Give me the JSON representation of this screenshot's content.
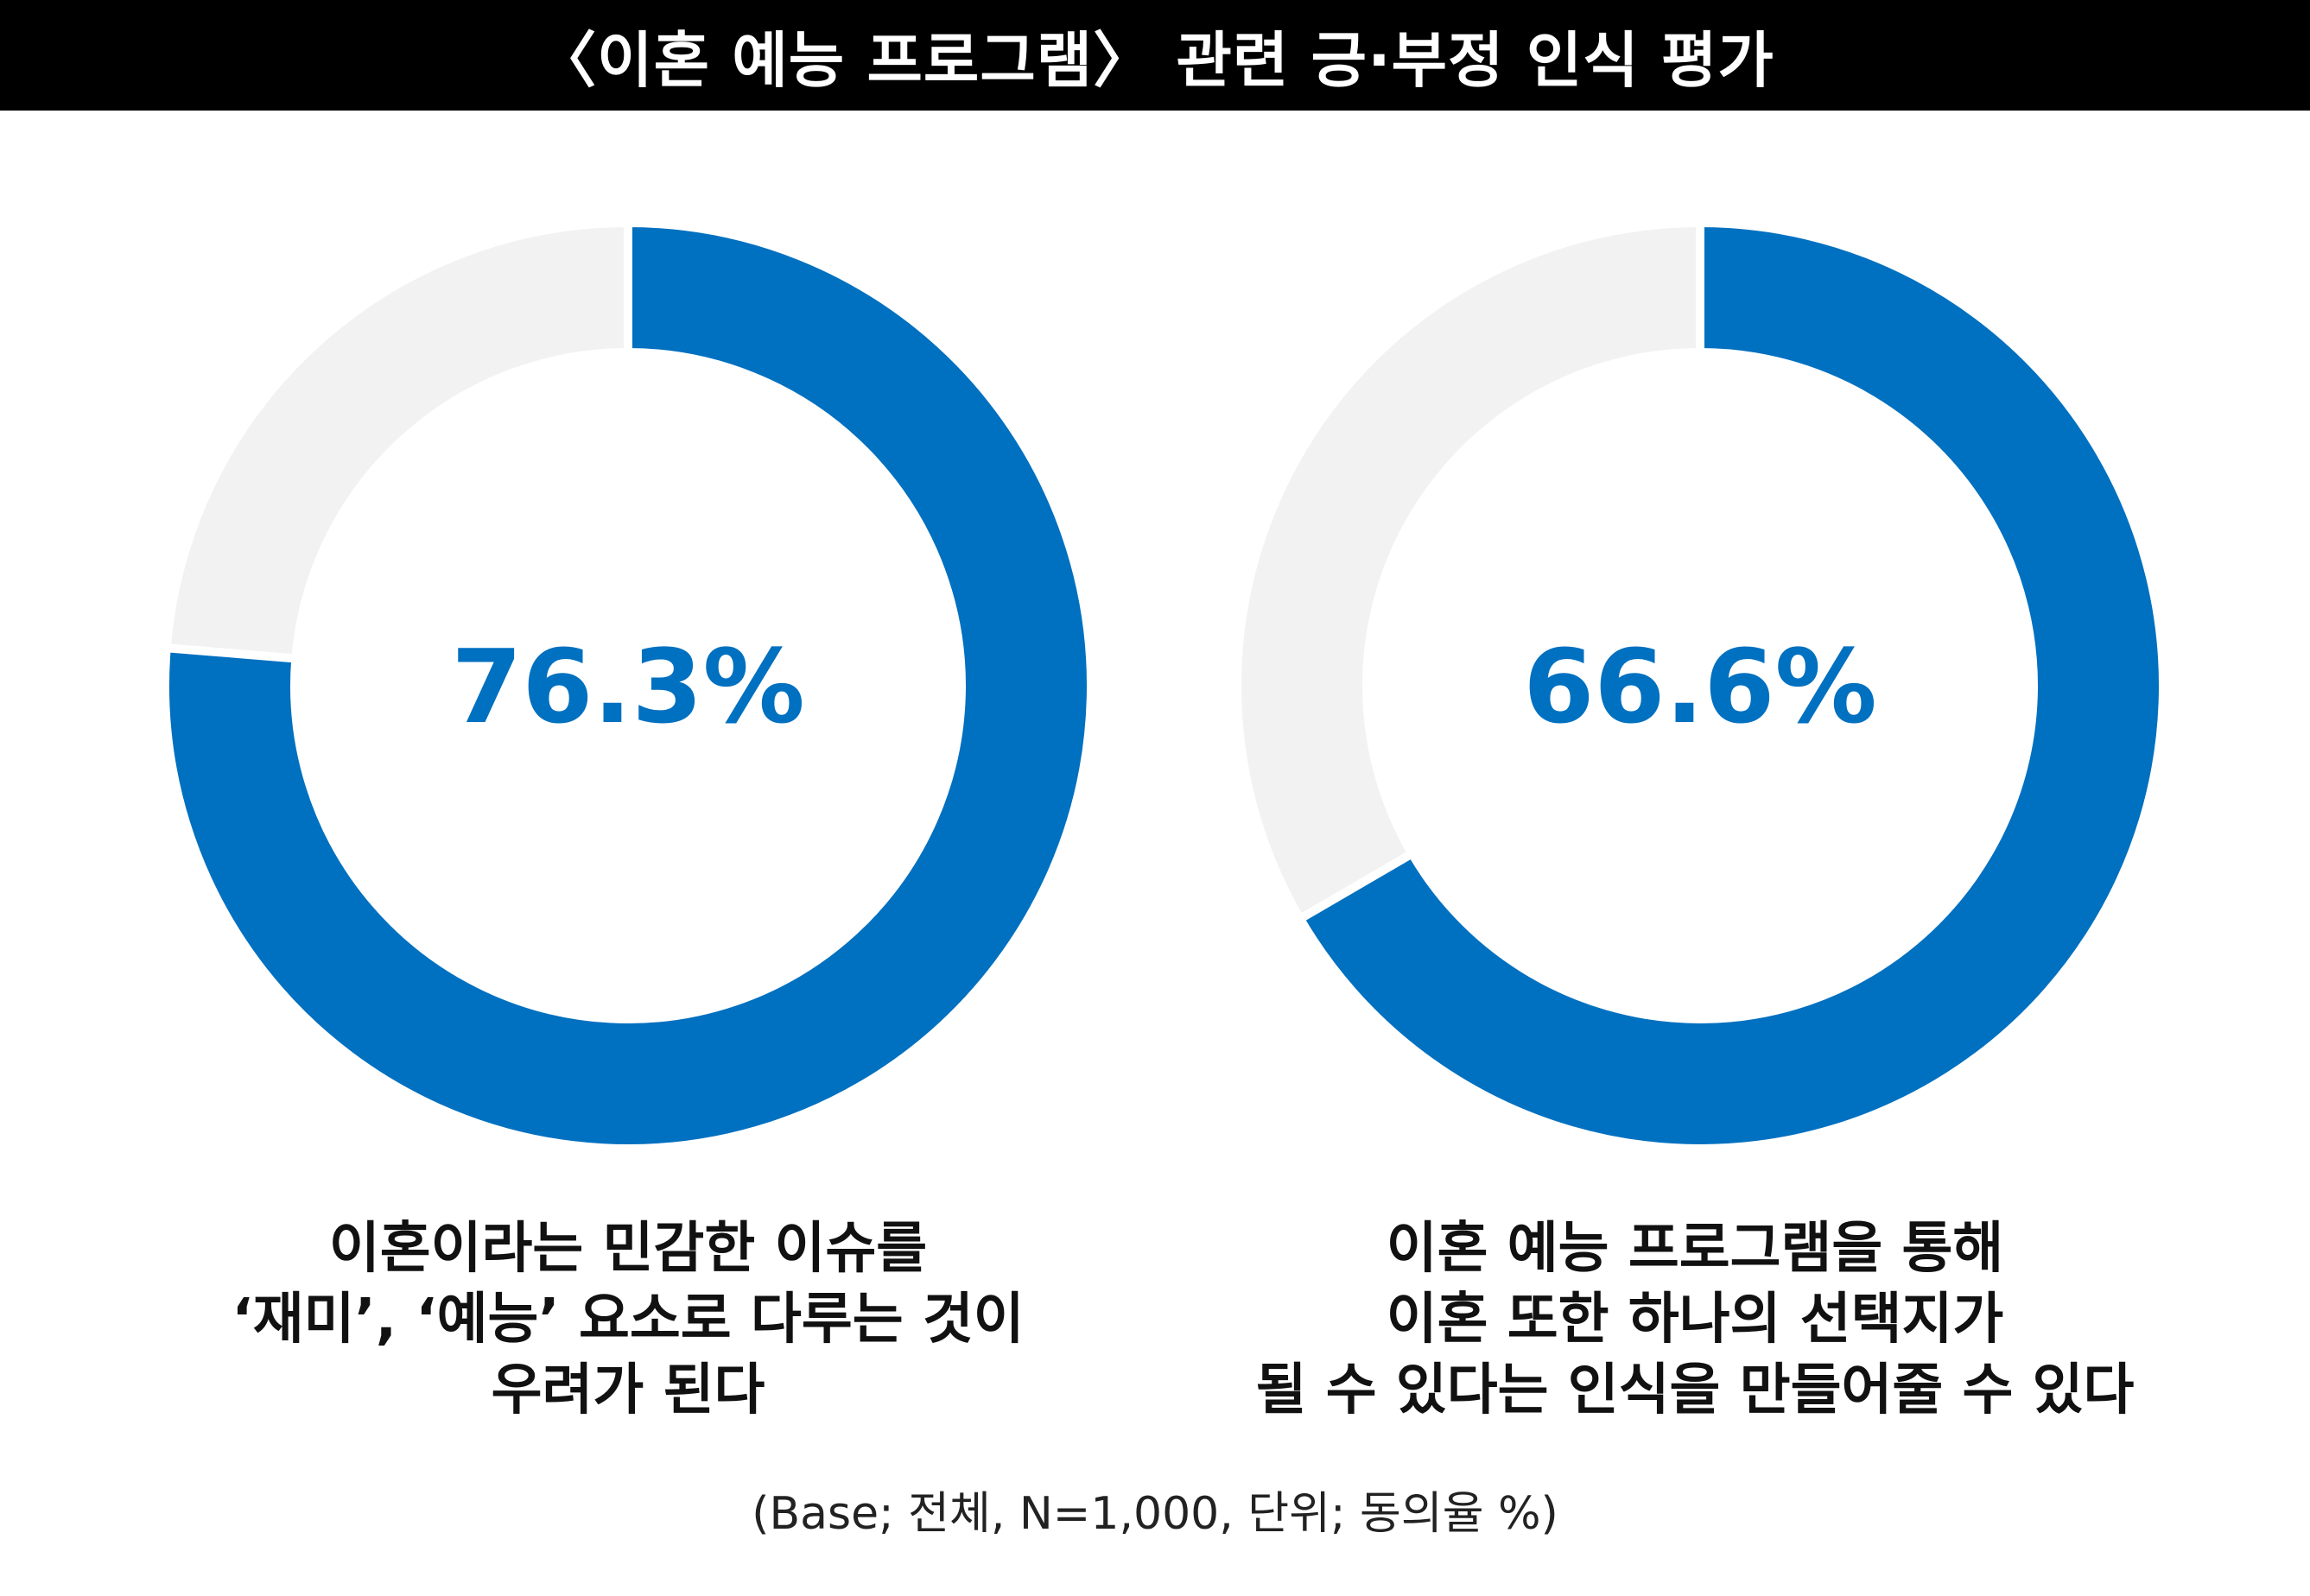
{
  "title": "〈이혼 예능 프로그램〉 관련 긍·부정 인식 평가",
  "footnote": "(Base; 전체, N=1,000, 단위; 동의율 %)",
  "colors": {
    "accent": "#0070C0",
    "remainder": "#F2F2F2",
    "title_bg": "#000000",
    "title_text": "#FFFFFF"
  },
  "chart_data": [
    {
      "type": "pie",
      "variant": "donut",
      "value": 76.3,
      "unit": "%",
      "center_label": "76.3%",
      "caption_lines": [
        "이혼이라는 민감한 이슈를",
        "‘재미’, ‘예능’ 요소로 다루는 것이",
        "우려가 된다"
      ]
    },
    {
      "type": "pie",
      "variant": "donut",
      "value": 66.6,
      "unit": "%",
      "center_label": "66.6%",
      "caption_lines": [
        "이혼 예능 프로그램을 통해",
        "이혼 또한 하나의 선택지가",
        "될 수 있다는 인식을 만들어줄 수 있다"
      ]
    }
  ]
}
